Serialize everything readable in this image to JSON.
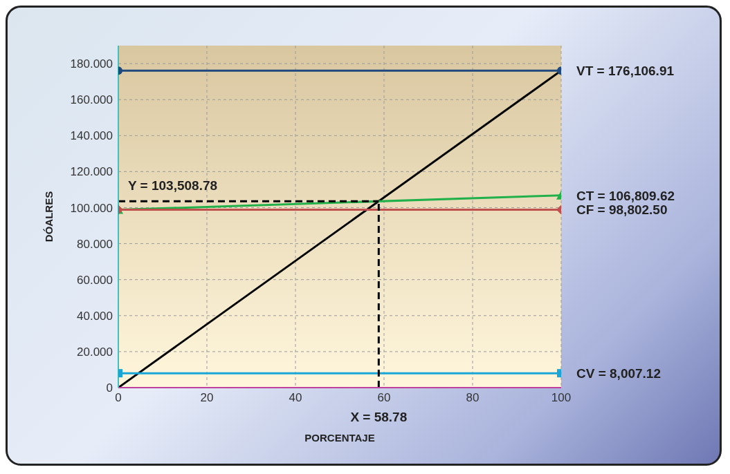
{
  "chart_data": {
    "type": "line",
    "xlabel": "PORCENTAJE",
    "ylabel": "DÓALRES",
    "xlim": [
      0,
      100
    ],
    "xticks": [
      0,
      20,
      40,
      60,
      80,
      100
    ],
    "ylim": [
      0,
      190
    ],
    "yticks": [
      0,
      {
        "value": 20,
        "label": "20.000"
      },
      {
        "value": 40,
        "label": "40.000"
      },
      {
        "value": 60,
        "label": "60.000"
      },
      {
        "value": 80,
        "label": "80.000"
      },
      {
        "value": 100,
        "label": "100.000"
      },
      {
        "value": 120,
        "label": "120.000"
      },
      {
        "value": 140,
        "label": "140.000"
      },
      {
        "value": 160,
        "label": "160.000"
      },
      {
        "value": 180,
        "label": "180.000"
      }
    ],
    "grid": true,
    "marker": "none",
    "line_style": "solid",
    "series": [
      {
        "x": [
          0,
          100
        ],
        "values": [
          0,
          176.1
        ],
        "color": "#000000"
      },
      {
        "x": [
          0,
          100
        ],
        "values": [
          176.1,
          176.1
        ],
        "color": "#1f497d",
        "marker": "circle"
      },
      {
        "x": [
          0,
          100
        ],
        "values": [
          98.8,
          106.8
        ],
        "color": "#22b04b",
        "marker": "triangle"
      },
      {
        "x": [
          0,
          100
        ],
        "values": [
          98.8,
          98.8
        ],
        "color": "#c0504d",
        "marker": "diamond"
      },
      {
        "x": [
          0,
          100
        ],
        "values": [
          8,
          8
        ],
        "color": "#1aa7d8",
        "marker": "square"
      },
      {
        "x": [
          0,
          58.8
        ],
        "values": [
          103.5,
          103.5
        ],
        "color": "#000000",
        "line_style": "dashed"
      },
      {
        "x": [
          58.8,
          58.8
        ],
        "values": [
          0,
          103.5
        ],
        "color": "#000000",
        "line_style": "dashed"
      }
    ],
    "annotations": [
      {
        "text": "VT = 176,106.91",
        "x": 100,
        "y": 176.1
      },
      {
        "text": "CT = 106,809.62",
        "x": 100,
        "y": 106.8
      },
      {
        "text": "CF = 98,802.50",
        "x": 100,
        "y": 98.8
      },
      {
        "text": "CV = 8,007.12",
        "x": 100,
        "y": 8
      },
      {
        "text": "Y = 103,508.78",
        "x": 0,
        "y": 103.5
      },
      {
        "text": "X = 58.78",
        "x": 58.8,
        "y": 0
      }
    ]
  }
}
